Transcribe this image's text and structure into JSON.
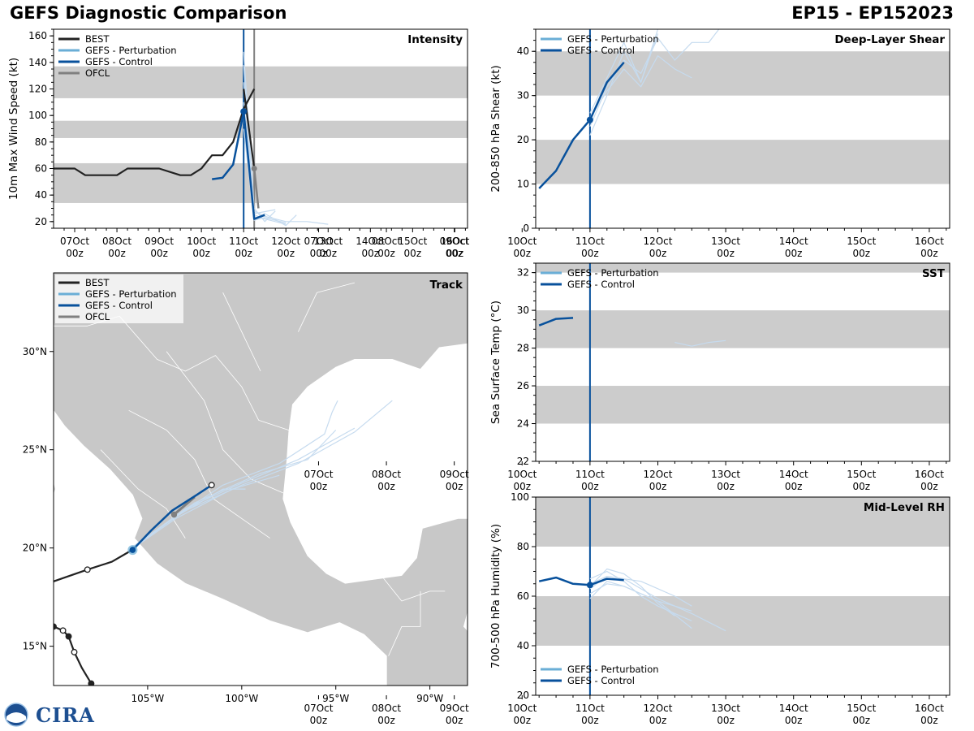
{
  "title_left": "GEFS Diagnostic Comparison",
  "title_right": "EP15 - EP152023",
  "logo_text": "CIRA",
  "colors": {
    "best": "#222222",
    "perturbation": "#6aaed6",
    "perturbation_thin": "#c6dbef",
    "control": "#08519c",
    "ofcl": "#808080",
    "shade": "#cccccc",
    "land": "#c8c8c8",
    "ocean": "#ffffff"
  },
  "time_ticks": [
    "07Oct",
    "08Oct",
    "09Oct",
    "10Oct",
    "11Oct",
    "12Oct",
    "13Oct",
    "14Oct",
    "15Oct",
    "16Oct"
  ],
  "time_tick_hour": "00z",
  "chart_data": [
    {
      "id": "intensity",
      "type": "line",
      "panel_label": "Intensity",
      "ylabel": "10m Max Wind Speed (kt)",
      "xlim": [
        -4.5,
        5.3
      ],
      "ylim": [
        15,
        165
      ],
      "yticks": [
        20,
        40,
        60,
        80,
        100,
        120,
        140,
        160
      ],
      "shade_bands": [
        [
          34,
          64
        ],
        [
          83,
          96
        ],
        [
          113,
          137
        ]
      ],
      "legend": [
        "BEST",
        "GEFS - Perturbation",
        "GEFS - Control",
        "OFCL"
      ],
      "vline_init": 0,
      "vline_ofcl": 0.25,
      "best": {
        "x": [
          -4.5,
          -4.0,
          -3.75,
          -3.5,
          -3.0,
          -2.75,
          -2.5,
          -2.0,
          -1.5,
          -1.25,
          -1.0,
          -0.75,
          -0.5,
          -0.25,
          0.0,
          0.25
        ],
        "y": [
          60,
          60,
          55,
          55,
          55,
          60,
          60,
          60,
          55,
          55,
          60,
          70,
          70,
          80,
          105,
          120
        ]
      },
      "best_tail": {
        "x": [
          0.0,
          0.25
        ],
        "y": [
          120,
          60
        ]
      },
      "ofcl": {
        "x": [
          0.25,
          0.35
        ],
        "y": [
          60,
          30
        ]
      },
      "control": {
        "x": [
          -0.75,
          -0.5,
          -0.25,
          0.0,
          0.25,
          0.5
        ],
        "y": [
          52,
          53,
          63,
          103,
          22,
          25
        ]
      },
      "control_point": {
        "x": 0.0,
        "y": 103
      },
      "perturbations": [
        {
          "x": [
            0.0,
            0.25,
            0.5,
            0.75
          ],
          "y": [
            148,
            30,
            20,
            28
          ]
        },
        {
          "x": [
            0.0,
            0.25,
            0.5,
            1.0
          ],
          "y": [
            138,
            25,
            22,
            18
          ]
        },
        {
          "x": [
            0.0,
            0.25,
            0.5,
            1.0,
            1.5,
            2.0
          ],
          "y": [
            125,
            28,
            24,
            20,
            20,
            18
          ]
        },
        {
          "x": [
            0.0,
            0.25,
            0.5,
            1.0,
            1.25
          ],
          "y": [
            110,
            22,
            26,
            17,
            25
          ]
        },
        {
          "x": [
            0.0,
            0.25,
            0.75
          ],
          "y": [
            98,
            26,
            29
          ]
        },
        {
          "x": [
            0.0,
            0.25,
            0.5,
            1.0
          ],
          "y": [
            90,
            21,
            23,
            19
          ]
        }
      ]
    },
    {
      "id": "shear",
      "type": "line",
      "panel_label": "Deep-Layer Shear",
      "ylabel": "200-850 hPa Shear (kt)",
      "xlim": [
        -0.8,
        5.3
      ],
      "ylim": [
        0,
        45
      ],
      "yticks": [
        0,
        10,
        20,
        30,
        40
      ],
      "shade_bands": [
        [
          10,
          20
        ],
        [
          30,
          40
        ]
      ],
      "legend": [
        "GEFS - Perturbation",
        "GEFS - Control"
      ],
      "vline_init": 0,
      "control": {
        "x": [
          -0.75,
          -0.5,
          -0.25,
          0.0,
          0.25,
          0.5
        ],
        "y": [
          9,
          13,
          20,
          24.5,
          33,
          37.5
        ]
      },
      "control_point": {
        "x": 0.0,
        "y": 24.5
      },
      "perturbations": [
        {
          "x": [
            0.0,
            0.25,
            0.5,
            0.75,
            1.0
          ],
          "y": [
            21,
            30,
            40,
            33,
            45
          ]
        },
        {
          "x": [
            0.0,
            0.25,
            0.5,
            0.75,
            1.0,
            1.25,
            1.5,
            1.75,
            1.9
          ],
          "y": [
            23,
            32,
            38,
            35,
            43,
            38,
            42,
            42,
            45
          ]
        },
        {
          "x": [
            0.0,
            0.25,
            0.5,
            0.75,
            1.0,
            1.25,
            1.5
          ],
          "y": [
            25,
            31,
            36,
            32,
            39,
            36,
            34
          ]
        },
        {
          "x": [
            0.0,
            0.25,
            0.5,
            0.75,
            1.0
          ],
          "y": [
            26,
            34,
            42,
            33,
            44
          ]
        }
      ]
    },
    {
      "id": "track",
      "type": "map",
      "panel_label": "Track",
      "lon_range": [
        -110,
        -88
      ],
      "lat_range": [
        13,
        34
      ],
      "lon_ticks": [
        "105°W",
        "100°W",
        "95°W",
        "90°W"
      ],
      "lat_ticks": [
        "15°N",
        "20°N",
        "25°N",
        "30°N"
      ],
      "legend": [
        "BEST",
        "GEFS - Perturbation",
        "GEFS - Control",
        "OFCL"
      ],
      "best": {
        "lon": [
          -110,
          -108.2,
          -106.9,
          -106.0,
          -105.7
        ],
        "lat": [
          18.3,
          18.9,
          19.3,
          19.8,
          20.0
        ]
      },
      "best_markers": {
        "lon": [
          -108.2
        ],
        "lat": [
          18.9
        ]
      },
      "best2": {
        "lon": [
          -110,
          -109.5,
          -109.2,
          -108.9,
          -108.5,
          -108.0,
          -107.8
        ],
        "lat": [
          16.0,
          15.8,
          15.5,
          14.7,
          13.9,
          13.1,
          12.7
        ]
      },
      "best2_markers": {
        "lon": [
          -110,
          -109.5,
          -109.2,
          -108.9,
          -108.0
        ],
        "lat": [
          16.0,
          15.8,
          15.5,
          14.7,
          13.1
        ]
      },
      "control": {
        "lon": [
          -105.8,
          -104.8,
          -103.7,
          -102.4,
          -101.6
        ],
        "lat": [
          19.9,
          20.9,
          21.9,
          22.7,
          23.2
        ]
      },
      "control_markers": {
        "lon": [
          -105.8,
          -101.6
        ],
        "lat": [
          19.9,
          23.2
        ]
      },
      "ofcl": {
        "lon": [
          -103.6,
          -102.5
        ],
        "lat": [
          21.7,
          22.6
        ]
      },
      "ofcl_markers": {
        "lon": [
          -103.6
        ],
        "lat": [
          21.7
        ]
      },
      "perturbations": [
        {
          "lon": [
            -105.8,
            -103.5,
            -101.0,
            -98.0,
            -95.6,
            -95.2,
            -94.9
          ],
          "lat": [
            20.0,
            21.6,
            23.2,
            24.3,
            25.8,
            26.9,
            27.5
          ]
        },
        {
          "lon": [
            -105.9,
            -103.0,
            -100.0,
            -97.0,
            -94.0,
            -92.0
          ],
          "lat": [
            20.0,
            21.9,
            23.2,
            24.3,
            25.9,
            27.5
          ]
        },
        {
          "lon": [
            -105.7,
            -103.0,
            -100.0,
            -97.0,
            -94.0
          ],
          "lat": [
            20.1,
            22.0,
            23.3,
            24.5,
            26.1
          ]
        },
        {
          "lon": [
            -105.8,
            -103.5,
            -101.0,
            -99.8
          ],
          "lat": [
            20.0,
            21.6,
            23.0,
            23.0
          ]
        },
        {
          "lon": [
            -105.8,
            -102.5,
            -99.0,
            -96.5,
            -95.0
          ],
          "lat": [
            20.0,
            22.3,
            23.8,
            24.5,
            26.0
          ]
        },
        {
          "lon": [
            -105.9,
            -103.5,
            -100.5,
            -98.0
          ],
          "lat": [
            19.9,
            21.5,
            23.0,
            23.7
          ]
        }
      ]
    },
    {
      "id": "sst",
      "type": "line",
      "panel_label": "SST",
      "ylabel": "Sea Surface Temp (°C)",
      "xlim": [
        -0.8,
        5.3
      ],
      "ylim": [
        22,
        32.5
      ],
      "yticks": [
        22,
        24,
        26,
        28,
        30,
        32
      ],
      "shade_bands": [
        [
          24,
          26
        ],
        [
          28,
          30
        ],
        [
          32,
          32.5
        ]
      ],
      "legend": [
        "GEFS - Perturbation",
        "GEFS - Control"
      ],
      "vline_init": 0,
      "control": {
        "x": [
          -0.75,
          -0.5,
          -0.25
        ],
        "y": [
          29.2,
          29.55,
          29.6
        ]
      },
      "perturbations": [
        {
          "x": [
            1.25,
            1.5,
            1.75,
            2.0
          ],
          "y": [
            28.3,
            28.1,
            28.3,
            28.4
          ]
        }
      ]
    },
    {
      "id": "rh",
      "type": "line",
      "panel_label": "Mid-Level RH",
      "ylabel": "700-500 hPa Humidity (%)",
      "xlim": [
        -0.8,
        5.3
      ],
      "ylim": [
        20,
        100
      ],
      "yticks": [
        20,
        40,
        60,
        80,
        100
      ],
      "shade_bands": [
        [
          40,
          60
        ],
        [
          80,
          100
        ]
      ],
      "legend": [
        "GEFS - Perturbation",
        "GEFS - Control"
      ],
      "vline_init": 0,
      "control": {
        "x": [
          -0.75,
          -0.5,
          -0.25,
          0.0,
          0.25,
          0.5
        ],
        "y": [
          66,
          67.5,
          65,
          64.5,
          67,
          66.5
        ]
      },
      "control_point": {
        "x": 0.0,
        "y": 64.5
      },
      "perturbations": [
        {
          "x": [
            0.0,
            0.25,
            0.5,
            0.75,
            1.0,
            1.25
          ],
          "y": [
            64,
            71,
            69,
            64,
            57,
            52
          ]
        },
        {
          "x": [
            0.0,
            0.25,
            0.5,
            0.75,
            1.0,
            1.5
          ],
          "y": [
            67,
            70,
            66,
            60,
            56,
            50
          ]
        },
        {
          "x": [
            0.0,
            0.25,
            0.5,
            1.0,
            1.5,
            2.0
          ],
          "y": [
            63,
            68,
            67,
            59,
            53,
            46
          ]
        },
        {
          "x": [
            0.0,
            0.25,
            0.5,
            1.0,
            1.5
          ],
          "y": [
            61,
            65,
            64,
            58,
            47
          ]
        },
        {
          "x": [
            0.0,
            0.25,
            0.5,
            0.75,
            1.0,
            1.5
          ],
          "y": [
            59,
            66,
            64,
            61,
            58,
            54
          ]
        },
        {
          "x": [
            0.0,
            0.25,
            0.75,
            1.25,
            1.5
          ],
          "y": [
            65,
            68,
            66,
            60,
            56
          ]
        }
      ]
    }
  ]
}
